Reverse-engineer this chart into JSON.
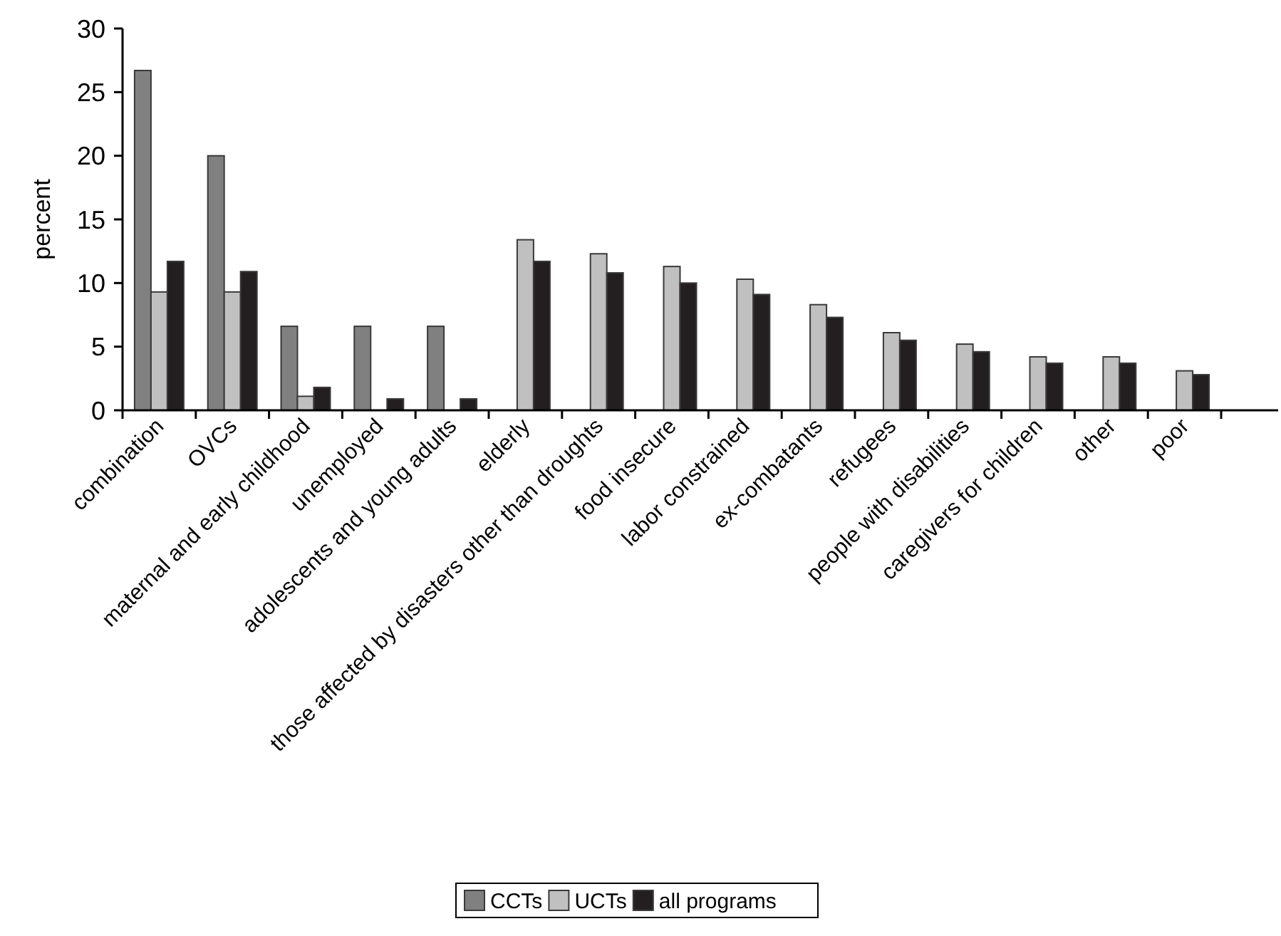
{
  "chart_data": {
    "type": "bar",
    "ylabel": "percent",
    "categories": [
      "combination",
      "OVCs",
      "maternal and early childhood",
      "unemployed",
      "adolescents and young adults",
      "elderly",
      "those affected by disasters other than droughts",
      "food insecure",
      "labor constrained",
      "ex-combatants",
      "refugees",
      "people with disabilities",
      "caregivers for children",
      "other",
      "poor"
    ],
    "series": [
      {
        "name": "CCTs",
        "color": "#808080",
        "values": [
          26.7,
          20.0,
          6.6,
          6.6,
          6.6,
          null,
          null,
          null,
          null,
          null,
          null,
          null,
          null,
          null,
          null
        ]
      },
      {
        "name": "UCTs",
        "color": "#c0c0c0",
        "values": [
          9.3,
          9.3,
          1.1,
          null,
          null,
          13.4,
          12.3,
          11.3,
          10.3,
          8.3,
          6.1,
          5.2,
          4.2,
          4.2,
          3.1
        ]
      },
      {
        "name": "all programs",
        "color": "#231f20",
        "values": [
          11.7,
          10.9,
          1.8,
          0.9,
          0.9,
          11.7,
          10.8,
          10.0,
          9.1,
          7.3,
          5.5,
          4.6,
          3.7,
          3.7,
          2.8
        ]
      }
    ],
    "ylim": [
      0,
      30
    ],
    "yticks": [
      0,
      5,
      10,
      15,
      20,
      25,
      30
    ],
    "grid": false,
    "legend": "bottom"
  }
}
